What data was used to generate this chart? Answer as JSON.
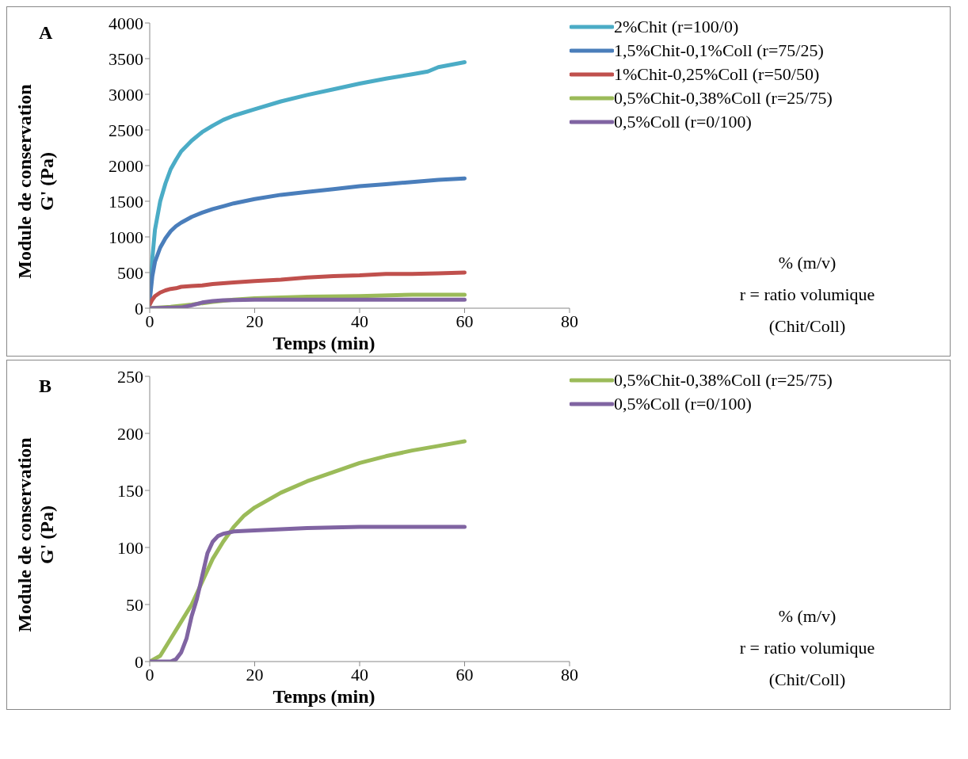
{
  "chart_data": [
    {
      "type": "line",
      "title": "A",
      "xlabel": "Temps (min)",
      "ylabel": "Module de conservation\nG' (Pa)",
      "xlim": [
        0,
        80
      ],
      "xticks": [
        0,
        20,
        40,
        60,
        80
      ],
      "ylim": [
        0,
        4000
      ],
      "yticks": [
        0,
        500,
        1000,
        1500,
        2000,
        2500,
        3000,
        3500,
        4000
      ],
      "grid": false,
      "legend": "top right",
      "marker": "none",
      "line_style": "solid",
      "annotations": [
        "% (m/v)",
        "r = ratio volumique",
        "(Chit/Coll)"
      ],
      "series": [
        {
          "name": "2%Chit (r=100/0)",
          "color": "#4bacc6",
          "x": [
            0,
            0.5,
            1,
            2,
            3,
            4,
            5,
            6,
            8,
            10,
            12,
            14,
            16,
            20,
            25,
            30,
            35,
            40,
            45,
            50,
            53,
            55,
            60
          ],
          "values": [
            100,
            700,
            1100,
            1500,
            1750,
            1950,
            2080,
            2200,
            2350,
            2470,
            2560,
            2640,
            2700,
            2790,
            2900,
            2990,
            3070,
            3150,
            3220,
            3280,
            3320,
            3380,
            3450
          ]
        },
        {
          "name": "1,5%Chit-0,1%Coll (r=75/25)",
          "color": "#4a7ebb",
          "x": [
            0,
            0.5,
            1,
            2,
            3,
            4,
            5,
            6,
            8,
            10,
            12,
            14,
            16,
            20,
            25,
            30,
            35,
            40,
            45,
            50,
            55,
            60
          ],
          "values": [
            100,
            450,
            650,
            850,
            980,
            1080,
            1150,
            1200,
            1280,
            1340,
            1390,
            1430,
            1470,
            1530,
            1590,
            1630,
            1670,
            1710,
            1740,
            1770,
            1800,
            1820
          ]
        },
        {
          "name": "1%Chit-0,25%Coll (r=50/50)",
          "color": "#c0504d",
          "x": [
            0,
            0.5,
            1,
            2,
            3,
            4,
            5,
            6,
            8,
            10,
            12,
            14,
            16,
            20,
            25,
            30,
            35,
            40,
            45,
            50,
            55,
            60
          ],
          "values": [
            50,
            120,
            170,
            220,
            250,
            270,
            280,
            300,
            310,
            320,
            340,
            350,
            360,
            380,
            400,
            430,
            450,
            460,
            480,
            480,
            490,
            500
          ]
        },
        {
          "name": "0,5%Chit-0,38%Coll (r=25/75)",
          "color": "#9bbb59",
          "x": [
            0,
            4,
            8,
            12,
            16,
            20,
            30,
            40,
            50,
            60
          ],
          "values": [
            0,
            20,
            50,
            90,
            120,
            140,
            160,
            170,
            190,
            190
          ]
        },
        {
          "name": "0,5%Coll (r=0/100)",
          "color": "#8064a2",
          "x": [
            0,
            6,
            8,
            10,
            12,
            14,
            20,
            40,
            60
          ],
          "values": [
            0,
            10,
            40,
            80,
            100,
            110,
            120,
            120,
            120
          ]
        }
      ]
    },
    {
      "type": "line",
      "title": "B",
      "xlabel": "Temps (min)",
      "ylabel": "Module de conservation\nG' (Pa)",
      "xlim": [
        0,
        80
      ],
      "xticks": [
        0,
        20,
        40,
        60,
        80
      ],
      "ylim": [
        0,
        250
      ],
      "yticks": [
        0,
        50,
        100,
        150,
        200,
        250
      ],
      "grid": false,
      "legend": "top right",
      "marker": "none",
      "line_style": "solid",
      "annotations": [
        "% (m/v)",
        "r = ratio volumique",
        "(Chit/Coll)"
      ],
      "series": [
        {
          "name": "0,5%Chit-0,38%Coll (r=25/75)",
          "color": "#9bbb59",
          "x": [
            0,
            2,
            4,
            6,
            8,
            10,
            12,
            14,
            16,
            18,
            20,
            25,
            30,
            35,
            40,
            45,
            50,
            55,
            60
          ],
          "values": [
            0,
            5,
            20,
            35,
            50,
            70,
            90,
            105,
            118,
            128,
            135,
            148,
            158,
            166,
            174,
            180,
            185,
            189,
            193
          ]
        },
        {
          "name": "0,5%Coll (r=0/100)",
          "color": "#8064a2",
          "x": [
            0,
            4,
            5,
            6,
            7,
            8,
            9,
            10,
            11,
            12,
            13,
            14,
            16,
            20,
            30,
            40,
            50,
            60
          ],
          "values": [
            0,
            0,
            2,
            8,
            20,
            40,
            55,
            75,
            95,
            105,
            110,
            112,
            114,
            115,
            117,
            118,
            118,
            118
          ]
        }
      ]
    }
  ]
}
